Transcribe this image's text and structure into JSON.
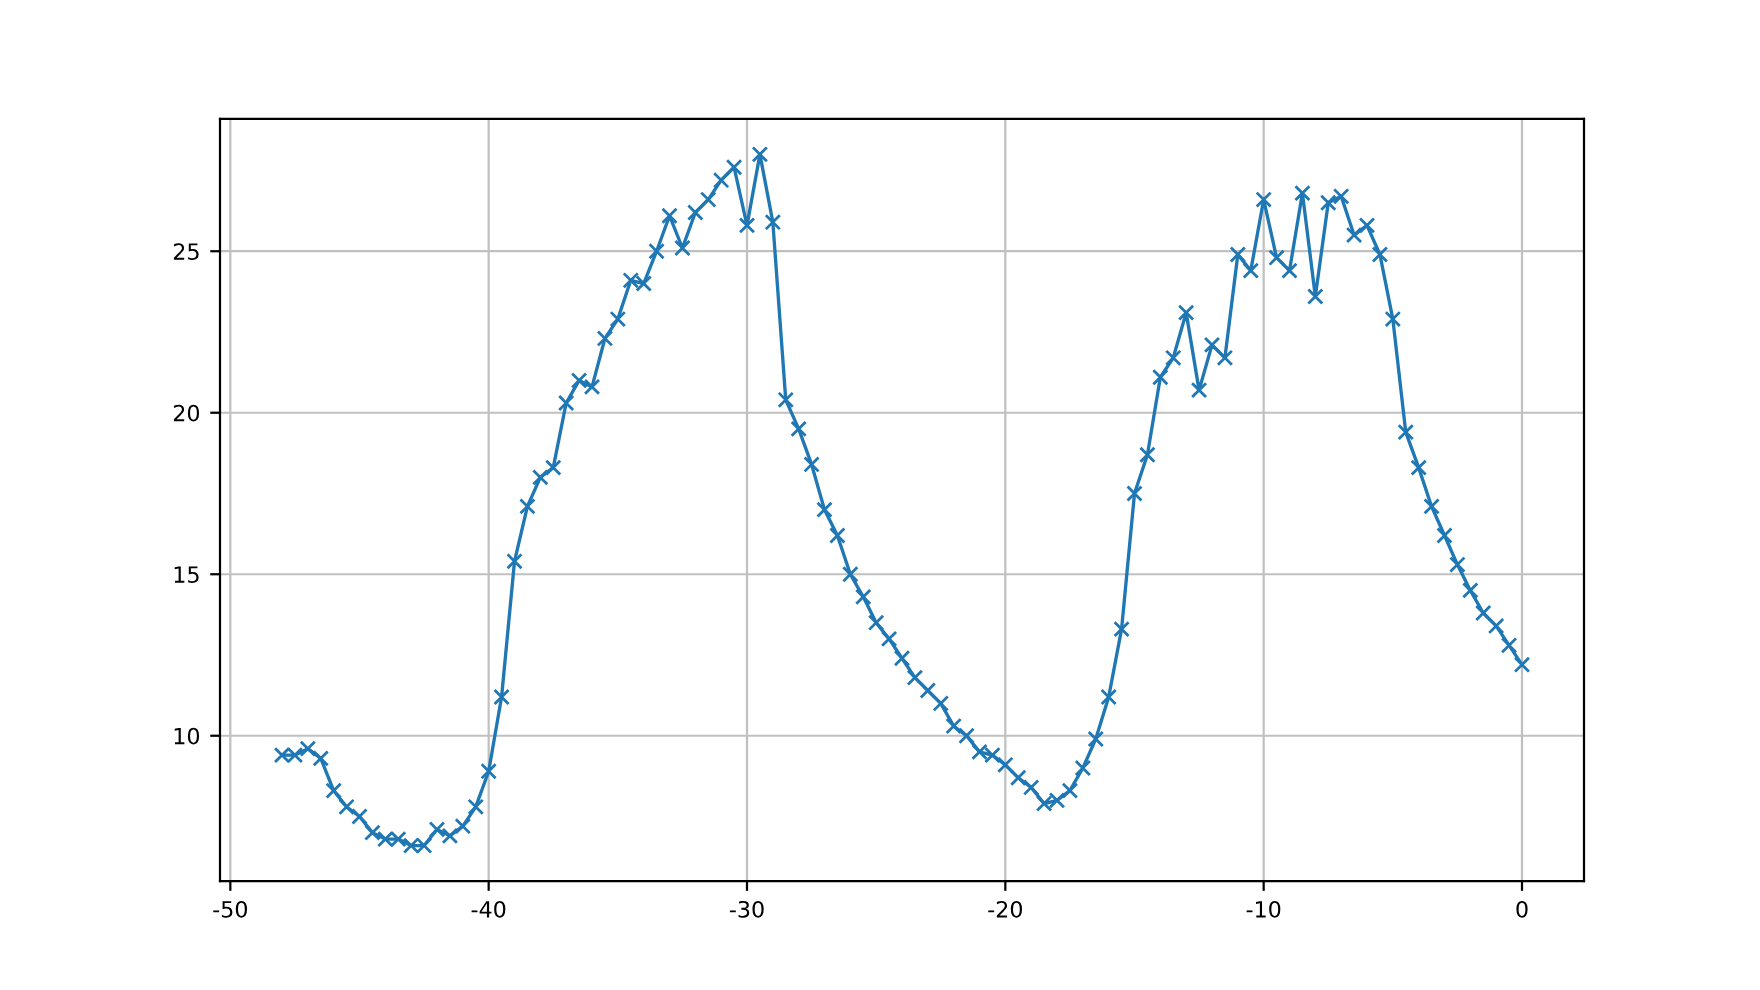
{
  "chart_data": {
    "type": "line",
    "x": [
      -48,
      -47.5,
      -47,
      -46.5,
      -46,
      -45.5,
      -45,
      -44.5,
      -44,
      -43.5,
      -43,
      -42.5,
      -42,
      -41.5,
      -41,
      -40.5,
      -40,
      -39.5,
      -39,
      -38.5,
      -38,
      -37.5,
      -37,
      -36.5,
      -36,
      -35.5,
      -35,
      -34.5,
      -34,
      -33.5,
      -33,
      -32.5,
      -32,
      -31.5,
      -31,
      -30.5,
      -30,
      -29.5,
      -29,
      -28.5,
      -28,
      -27.5,
      -27,
      -26.5,
      -26,
      -25.5,
      -25,
      -24.5,
      -24,
      -23.5,
      -23,
      -22.5,
      -22,
      -21.5,
      -21,
      -20.5,
      -20,
      -19.5,
      -19,
      -18.5,
      -18,
      -17.5,
      -17,
      -16.5,
      -16,
      -15.5,
      -15,
      -14.5,
      -14,
      -13.5,
      -13,
      -12.5,
      -12,
      -11.5,
      -11,
      -10.5,
      -10,
      -9.5,
      -9,
      -8.5,
      -8,
      -7.5,
      -7,
      -6.5,
      -6,
      -5.5,
      -5,
      -4.5,
      -4,
      -3.5,
      -3,
      -2.5,
      -2,
      -1.5,
      -1,
      -0.5,
      0
    ],
    "series": [
      {
        "color": "#1f77b4",
        "values": [
          9.4,
          9.4,
          9.6,
          9.3,
          8.3,
          7.8,
          7.5,
          7.0,
          6.8,
          6.8,
          6.6,
          6.6,
          7.1,
          6.9,
          7.2,
          7.8,
          8.9,
          11.2,
          15.4,
          17.1,
          18.0,
          18.3,
          20.3,
          21.0,
          20.8,
          22.3,
          22.9,
          24.1,
          24.0,
          25.0,
          26.1,
          25.1,
          26.2,
          26.6,
          27.2,
          27.6,
          25.8,
          28.0,
          25.9,
          20.4,
          19.5,
          18.4,
          17.0,
          16.2,
          15.0,
          14.3,
          13.5,
          13.0,
          12.4,
          11.8,
          11.4,
          11.0,
          10.3,
          10.0,
          9.5,
          9.4,
          9.1,
          8.7,
          8.4,
          7.9,
          8.0,
          8.3,
          9.0,
          9.9,
          11.2,
          13.3,
          17.5,
          18.7,
          21.1,
          21.7,
          23.1,
          20.7,
          22.1,
          21.7,
          24.9,
          24.4,
          26.6,
          24.8,
          24.4,
          26.8,
          23.6,
          26.5,
          26.7,
          25.5,
          25.8,
          24.9,
          22.9,
          19.4,
          18.3,
          17.1,
          16.2,
          15.3,
          14.5,
          13.8,
          13.4,
          12.8,
          12.2
        ]
      }
    ],
    "xlim": [
      -50.4,
      2.4
    ],
    "xticks": [
      -50,
      -40,
      -30,
      -20,
      -10,
      0
    ],
    "ylim": [
      5.5,
      29.1
    ],
    "yticks": [
      10,
      15,
      20,
      25
    ],
    "grid": true,
    "marker": "cross",
    "line_style": "solid"
  }
}
